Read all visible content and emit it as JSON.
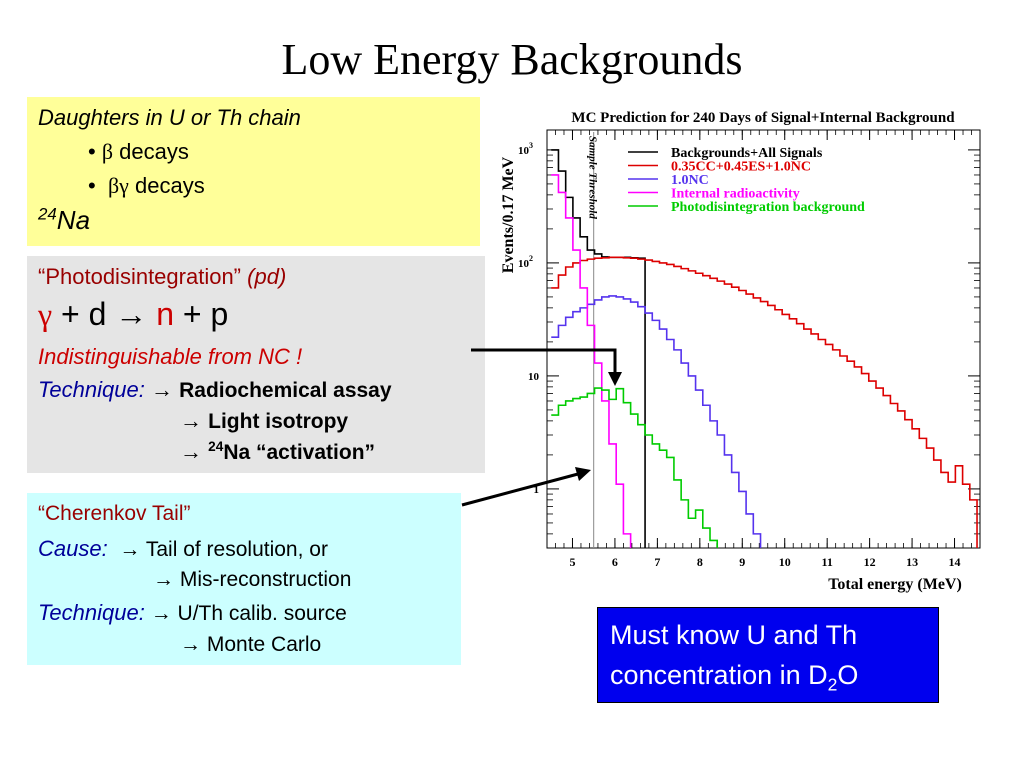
{
  "title": "Low Energy Backgrounds",
  "box_yellow": {
    "heading": "Daughters in U or Th chain",
    "bullet1_sym": "β",
    "bullet1_text": "decays",
    "bullet2_sym": "βγ",
    "bullet2_text": "decays",
    "na_mass": "24",
    "na_symbol": "Na"
  },
  "box_grey": {
    "pd_name": "“Photodisintegration”",
    "pd_abbrev": "(pd)",
    "reaction": {
      "gamma": "γ",
      "plus1": "+",
      "d": "d",
      "arrow": "→",
      "n": "n",
      "plus2": "+",
      "p": "p"
    },
    "indistinguishable": "Indistinguishable from NC !",
    "technique_label": "Technique:",
    "arrow": "→",
    "items": [
      "Radiochemical assay",
      "Light isotropy"
    ],
    "item3_mass": "24",
    "item3_text": "Na “activation”"
  },
  "box_cyan": {
    "heading": "“Cherenkov Tail”",
    "cause_label": "Cause:",
    "arrow": "→",
    "causes": [
      "Tail of resolution, or",
      "Mis-reconstruction"
    ],
    "technique_label": "Technique:",
    "techniques": [
      "U/Th calib. source",
      "Monte Carlo"
    ]
  },
  "box_blue": {
    "line1": "Must know U and Th",
    "line2_pre": "concentration in D",
    "line2_sub": "2",
    "line2_post": "O"
  },
  "colors": {
    "yellow_box": "#ffff99",
    "grey_box": "#e5e5e5",
    "cyan_box": "#ccffff",
    "blue_box": "#0000ee",
    "red_text": "#cc0000",
    "navy_text": "#000099"
  },
  "chart_data": {
    "type": "line",
    "title": "MC Prediction for 240 Days of Signal+Internal Background",
    "xlabel": "Total energy (MeV)",
    "ylabel": "Events/0.17 MeV",
    "yscale": "log",
    "xlim": [
      4.4,
      14.6
    ],
    "ylim": [
      0.3,
      1500
    ],
    "x_ticks": [
      "5",
      "6",
      "7",
      "8",
      "9",
      "10",
      "11",
      "12",
      "13",
      "14"
    ],
    "y_ticks": [
      {
        "base": "10",
        "exp": "3"
      },
      {
        "base": "10",
        "exp": "2"
      },
      {
        "base": "10",
        "exp": ""
      },
      {
        "base": "1",
        "exp": ""
      }
    ],
    "threshold": {
      "x": 5.5,
      "label": "Sample Threshold"
    },
    "legend_position": "top-right",
    "series": [
      {
        "name": "Backgrounds+All Signals",
        "color": "#000000",
        "x": [
          4.5,
          4.67,
          4.84,
          5.01,
          5.18,
          5.35,
          5.52,
          5.69,
          5.86,
          6.03,
          6.2,
          6.37,
          6.54
        ],
        "y": [
          1000,
          650,
          380,
          250,
          170,
          130,
          120,
          113,
          112,
          112,
          112,
          111,
          110
        ]
      },
      {
        "name": "0.35CC+0.45ES+1.0NC",
        "color": "#dd0000",
        "x": [
          4.5,
          4.67,
          4.84,
          5.01,
          5.18,
          5.35,
          5.52,
          5.69,
          5.86,
          6.03,
          6.2,
          6.37,
          6.54,
          6.71,
          6.88,
          7.05,
          7.22,
          7.39,
          7.56,
          7.73,
          7.9,
          8.07,
          8.24,
          8.41,
          8.58,
          8.75,
          8.92,
          9.09,
          9.26,
          9.43,
          9.6,
          9.77,
          9.94,
          10.11,
          10.28,
          10.45,
          10.62,
          10.79,
          10.96,
          11.13,
          11.3,
          11.47,
          11.64,
          11.81,
          11.98,
          12.15,
          12.32,
          12.49,
          12.66,
          12.83,
          13,
          13.17,
          13.34,
          13.51,
          13.68,
          13.85,
          14.02,
          14.19,
          14.36
        ],
        "y": [
          60,
          78,
          92,
          100,
          105,
          108,
          110,
          111,
          112,
          112,
          111,
          110,
          108,
          106,
          103,
          100,
          97,
          93,
          89,
          85,
          81,
          77,
          73,
          69,
          65,
          61,
          57,
          53,
          49,
          45.5,
          42,
          38.5,
          35,
          32,
          29,
          26,
          23.5,
          21,
          19,
          17,
          15,
          13.5,
          12,
          10.5,
          9,
          7.8,
          6.7,
          5.7,
          4.9,
          4.1,
          3.4,
          2.8,
          2.3,
          1.8,
          1.4,
          1.15,
          1.6,
          1.1,
          0.8
        ]
      },
      {
        "name": "1.0NC",
        "color": "#5533ee",
        "x": [
          4.5,
          4.67,
          4.84,
          5.01,
          5.18,
          5.35,
          5.52,
          5.69,
          5.86,
          6.03,
          6.2,
          6.37,
          6.54,
          6.71,
          6.88,
          7.05,
          7.22,
          7.39,
          7.56,
          7.73,
          7.9,
          8.07,
          8.24,
          8.41,
          8.58,
          8.75,
          8.92,
          9.09,
          9.26
        ],
        "y": [
          22,
          28,
          33,
          37,
          40,
          43,
          47,
          50,
          51,
          50,
          48,
          45,
          41,
          36,
          31,
          26,
          21,
          17,
          13,
          10,
          7.5,
          5.5,
          4,
          3,
          2,
          1.4,
          0.95,
          0.6,
          0.4
        ]
      },
      {
        "name": "Internal radioactivity",
        "color": "#ff00ff",
        "x": [
          4.5,
          4.67,
          4.84,
          5.01,
          5.18,
          5.35,
          5.52,
          5.69,
          5.86,
          6.03,
          6.2
        ],
        "y": [
          600,
          420,
          250,
          130,
          60,
          28,
          13,
          6,
          2.5,
          1.1,
          0.4
        ]
      },
      {
        "name": "Photodisintegration background",
        "color": "#00cc00",
        "x": [
          4.5,
          4.67,
          4.84,
          5.01,
          5.18,
          5.35,
          5.52,
          5.69,
          5.86,
          6.03,
          6.2,
          6.37,
          6.54,
          6.71,
          6.88,
          7.05,
          7.22,
          7.39,
          7.56,
          7.73,
          7.9,
          8.07,
          8.24
        ],
        "y": [
          4.5,
          5.5,
          6,
          6.3,
          6.5,
          7,
          7.8,
          7.5,
          6.2,
          7.7,
          5.8,
          4.6,
          3.7,
          3,
          2.5,
          2.2,
          1.9,
          1.2,
          0.8,
          0.55,
          0.65,
          0.45,
          0.35
        ]
      }
    ]
  }
}
